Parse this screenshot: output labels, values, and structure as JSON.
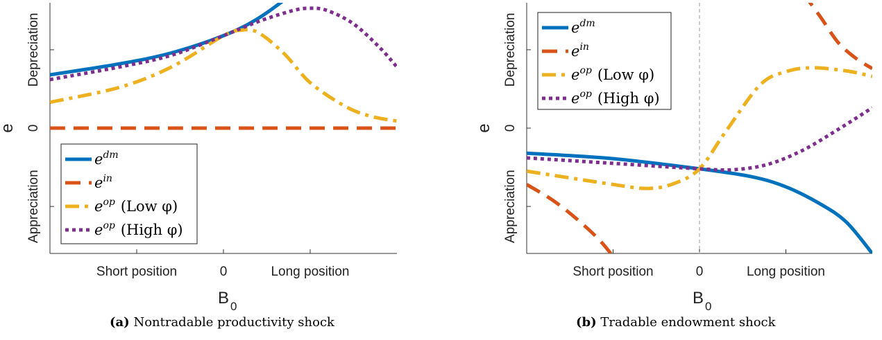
{
  "chart_data": [
    {
      "id": "a",
      "type": "line",
      "caption_letter": "(a)",
      "caption_text": "Nontradable productivity shock",
      "xlabel_main": "B",
      "xlabel_sub": "0",
      "ylabel": "e",
      "xlim": [
        -1,
        1
      ],
      "ylim": [
        -1.6,
        1.6
      ],
      "x_ticks": [
        -0.5,
        0,
        0.5
      ],
      "y_ticks": [
        -1,
        0,
        1
      ],
      "x_tick_labels": [
        {
          "x": -0.5,
          "text": "Short position"
        },
        {
          "x": 0,
          "text": "0"
        },
        {
          "x": 0.5,
          "text": "Long position"
        }
      ],
      "y_tick_labels": [
        {
          "y": -1,
          "text": "Appreciation"
        },
        {
          "y": 0,
          "text": "0"
        },
        {
          "y": 1,
          "text": "Depreciation"
        }
      ],
      "legend_position": "bottom-left",
      "series": [
        {
          "name": "e",
          "sup": "dm",
          "extra": "",
          "color": "#0072BD",
          "dash": "solid",
          "x": [
            -1,
            -0.6,
            -0.3,
            0,
            0.2,
            0.4,
            0.55,
            0.7
          ],
          "y": [
            0.68,
            0.82,
            0.96,
            1.18,
            1.4,
            1.72,
            2.0,
            2.4
          ]
        },
        {
          "name": "e",
          "sup": "in",
          "extra": "",
          "color": "#D95319",
          "dash": "dash",
          "x": [
            -1,
            1
          ],
          "y": [
            0,
            0
          ]
        },
        {
          "name": "e",
          "sup": "op",
          "extra": "(Low φ)",
          "color": "#EDB120",
          "dash": "dashdot",
          "x": [
            -1,
            -0.6,
            -0.3,
            0,
            0.1,
            0.2,
            0.35,
            0.5,
            0.7,
            0.85,
            1.0
          ],
          "y": [
            0.33,
            0.52,
            0.78,
            1.18,
            1.25,
            1.22,
            0.95,
            0.58,
            0.28,
            0.15,
            0.09
          ]
        },
        {
          "name": "e",
          "sup": "op",
          "extra": "(High φ)",
          "color": "#7E2F8E",
          "dash": "dot",
          "x": [
            -1,
            -0.6,
            -0.3,
            0,
            0.2,
            0.4,
            0.5,
            0.6,
            0.75,
            0.9,
            1.0
          ],
          "y": [
            0.62,
            0.78,
            0.93,
            1.18,
            1.36,
            1.5,
            1.53,
            1.5,
            1.33,
            1.03,
            0.78
          ]
        }
      ]
    },
    {
      "id": "b",
      "type": "line",
      "caption_letter": "(b)",
      "caption_text": "Tradable endowment shock",
      "xlabel_main": "B",
      "xlabel_sub": "0",
      "ylabel": "e",
      "xlim": [
        -1,
        1
      ],
      "ylim": [
        -1.6,
        1.6
      ],
      "x_ticks": [
        -0.5,
        0,
        0.5
      ],
      "y_ticks": [
        -1,
        0,
        1
      ],
      "vline_x": 0,
      "x_tick_labels": [
        {
          "x": -0.5,
          "text": "Short position"
        },
        {
          "x": 0,
          "text": "0"
        },
        {
          "x": 0.5,
          "text": "Long position"
        }
      ],
      "y_tick_labels": [
        {
          "y": -1,
          "text": "Appreciation"
        },
        {
          "y": 0,
          "text": "0"
        },
        {
          "y": 1,
          "text": "Depreciation"
        }
      ],
      "legend_position": "top-left",
      "series": [
        {
          "name": "e",
          "sup": "dm",
          "extra": "",
          "color": "#0072BD",
          "dash": "solid",
          "x": [
            -1,
            -0.5,
            0,
            0.3,
            0.5,
            0.7,
            0.85,
            1.0
          ],
          "y": [
            -0.32,
            -0.39,
            -0.52,
            -0.62,
            -0.75,
            -0.97,
            -1.2,
            -1.6
          ]
        },
        {
          "name": "e",
          "sup": "in",
          "extra": "",
          "color": "#D95319",
          "dash": "dash",
          "x": [
            -1,
            -0.85,
            -0.7,
            -0.55,
            -0.4
          ],
          "y": [
            -0.72,
            -0.92,
            -1.18,
            -1.5,
            -1.95
          ]
        },
        {
          "name": "e",
          "sup": "op",
          "extra": "(Low φ)",
          "color": "#EDB120",
          "dash": "dashdot",
          "x": [
            -1,
            -0.5,
            -0.3,
            -0.15,
            0,
            0.15,
            0.35,
            0.5,
            0.65,
            0.85,
            1.0
          ],
          "y": [
            -0.55,
            -0.72,
            -0.77,
            -0.71,
            -0.52,
            -0.05,
            0.55,
            0.72,
            0.77,
            0.73,
            0.66
          ]
        },
        {
          "name": "e",
          "sup": "op",
          "extra": "(High φ)",
          "color": "#7E2F8E",
          "dash": "dot",
          "x": [
            -1,
            -0.5,
            0,
            0.2,
            0.4,
            0.6,
            0.8,
            1.0
          ],
          "y": [
            -0.38,
            -0.45,
            -0.52,
            -0.53,
            -0.46,
            -0.28,
            -0.02,
            0.26
          ]
        }
      ],
      "extra_series_right": {
        "color": "#D95319",
        "dash": "dash",
        "x": [
          0.0,
          0.05,
          0.1,
          0.25,
          0.4,
          0.6,
          0.8,
          1.0
        ],
        "y": [
          1.6,
          1.6,
          1.6,
          1.6,
          1.6,
          1.6,
          0.9,
          0.72
        ]
      },
      "in_right_branch": {
        "x": [
          0.6,
          0.7,
          0.8,
          0.9,
          1.0
        ],
        "y": [
          1.72,
          1.42,
          1.1,
          0.9,
          0.76
        ]
      }
    }
  ]
}
